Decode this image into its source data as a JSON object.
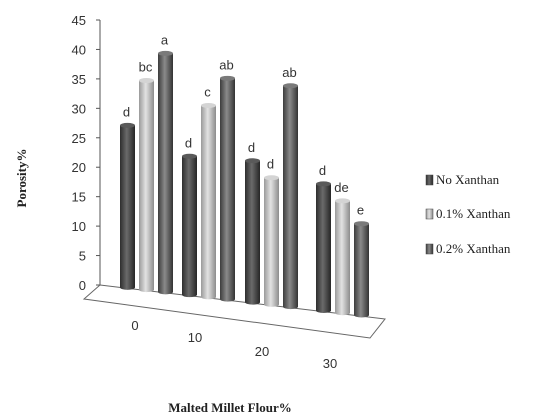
{
  "chart_data": {
    "type": "bar",
    "categories": [
      "0",
      "10",
      "20",
      "30"
    ],
    "series": [
      {
        "name": "No Xanthan",
        "values": [
          27.5,
          23.5,
          24,
          21.5
        ],
        "labels": [
          "d",
          "d",
          "d",
          "d"
        ],
        "color": "#4a4a4a"
      },
      {
        "name": "0.1% Xanthan",
        "values": [
          35.5,
          32.5,
          21.5,
          19
        ],
        "labels": [
          "bc",
          "c",
          "d",
          "de"
        ],
        "color": "#bdbdbd"
      },
      {
        "name": "0.2% Xanthan",
        "values": [
          40.5,
          37.5,
          37.5,
          15.5
        ],
        "labels": [
          "a",
          "ab",
          "ab",
          "e"
        ],
        "color": "#666666"
      }
    ],
    "xlabel": "Malted Millet Flour%",
    "ylabel": "Porosity%",
    "ylim": [
      0,
      45
    ],
    "yticks": [
      0,
      5,
      10,
      15,
      20,
      25,
      30,
      35,
      40,
      45
    ],
    "legend_position": "right",
    "style": "3d-cylinder"
  }
}
